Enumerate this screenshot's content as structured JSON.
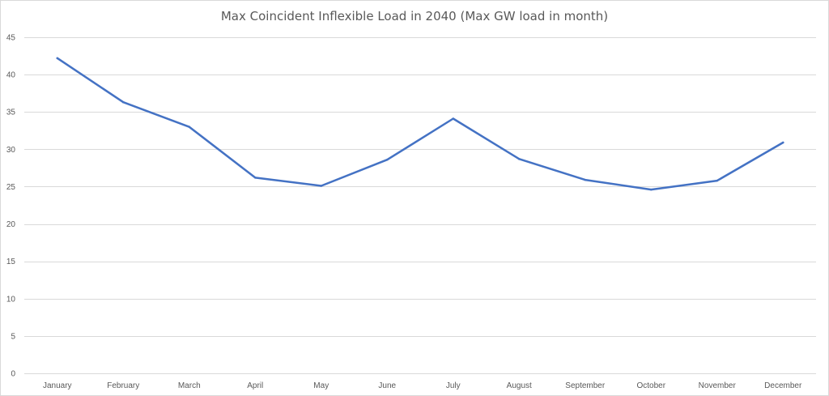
{
  "chart_data": {
    "type": "line",
    "title": "Max Coincident Inflexible Load in 2040 (Max GW load in month)",
    "xlabel": "",
    "ylabel": "",
    "categories": [
      "January",
      "February",
      "March",
      "April",
      "May",
      "June",
      "July",
      "August",
      "September",
      "October",
      "November",
      "December"
    ],
    "series": [
      {
        "values": [
          42.2,
          36.3,
          33.0,
          26.2,
          25.1,
          28.6,
          34.1,
          28.7,
          25.9,
          24.6,
          25.8,
          30.9
        ],
        "color": "#4472c4"
      }
    ],
    "ylim": [
      0,
      45
    ],
    "yticks": [
      0,
      5,
      10,
      15,
      20,
      25,
      30,
      35,
      40,
      45
    ],
    "grid": true,
    "legend": "none"
  }
}
